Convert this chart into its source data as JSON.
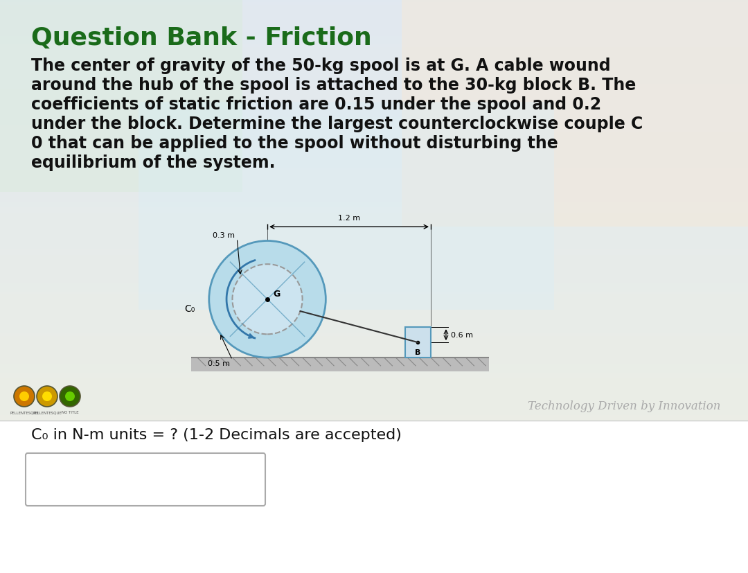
{
  "title": "Question Bank - Friction",
  "title_color": "#1a6b1a",
  "title_fontsize": 26,
  "body_text_lines": [
    "The center of gravity of the 50-kg spool is at G. A cable wound",
    "around the hub of the spool is attached to the 30-kg block B. The",
    "coefficients of static friction are 0.15 under the spool and 0.2",
    "under the block. Determine the largest counterclockwise couple C",
    "0 that can be applied to the spool without disturbing the",
    "equilibrium of the system."
  ],
  "body_fontsize": 17,
  "question_text": "C₀ in N-m units = ? (1-2 Decimals are accepted)",
  "question_fontsize": 16,
  "watermark": "Technology Driven by Innovation",
  "spool_color": "#b8dcea",
  "spool_edge_color": "#5599bb",
  "hub_fill_color": "#cce4f0",
  "hub_dashed_color": "#999999",
  "ground_color": "#aaaaaa",
  "block_fill_color": "#cce0ec",
  "block_edge_color": "#5599bb",
  "cable_color": "#333333",
  "arrow_color": "#3377aa",
  "label_03m": "0.3 m",
  "label_05m": "0.5 m",
  "label_12m": "1.2 m",
  "label_06m": "0.6 m",
  "label_G": "G",
  "label_B": "B",
  "label_C0": "C₀",
  "circle_colors": [
    "#cc7700",
    "#cc9900",
    "#336600"
  ],
  "circle_inner_colors": [
    "#ffcc00",
    "#ffdd00",
    "#66cc00"
  ]
}
